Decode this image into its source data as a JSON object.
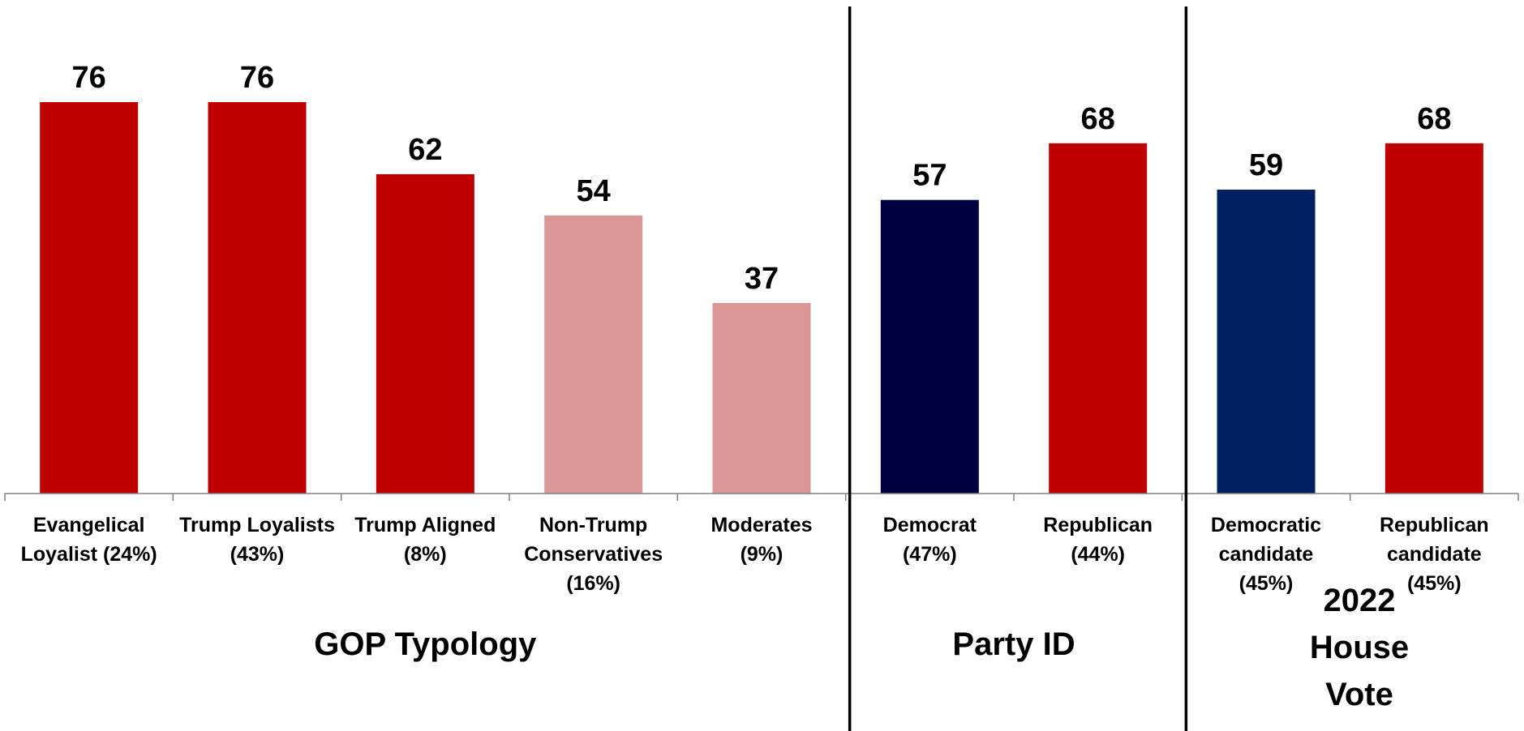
{
  "chart_data": {
    "type": "bar",
    "title": "",
    "xlabel": "",
    "ylabel": "",
    "ylim": [
      0,
      90
    ],
    "grid": false,
    "legend": "none",
    "groups": [
      {
        "label": "GOP Typology",
        "start": 0,
        "end": 4
      },
      {
        "label": "Party ID",
        "start": 5,
        "end": 6
      },
      {
        "label": "2022\nHouse\nVote",
        "start": 7,
        "end": 8
      }
    ],
    "bars": [
      {
        "label": "Evangelical\nLoyalist (24%)",
        "value": 76,
        "color": "#c00000"
      },
      {
        "label": "Trump Loyalists\n(43%)",
        "value": 76,
        "color": "#c00000"
      },
      {
        "label": "Trump Aligned\n(8%)",
        "value": 62,
        "color": "#c00000"
      },
      {
        "label": "Non-Trump\nConservatives\n(16%)",
        "value": 54,
        "color": "#da9694"
      },
      {
        "label": "Moderates\n(9%)",
        "value": 37,
        "color": "#da9694"
      },
      {
        "label": "Democrat\n(47%)",
        "value": 57,
        "color": "#000040"
      },
      {
        "label": "Republican\n(44%)",
        "value": 68,
        "color": "#c00000"
      },
      {
        "label": "Democratic\ncandidate\n(45%)",
        "value": 59,
        "color": "#002060"
      },
      {
        "label": "Republican\ncandidate\n(45%)",
        "value": 68,
        "color": "#c00000"
      }
    ]
  }
}
